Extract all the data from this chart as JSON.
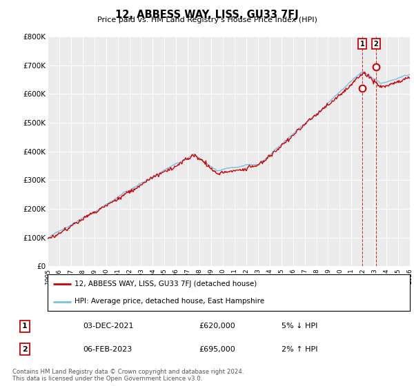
{
  "title": "12, ABBESS WAY, LISS, GU33 7FJ",
  "subtitle": "Price paid vs. HM Land Registry's House Price Index (HPI)",
  "ylim": [
    0,
    800000
  ],
  "xlim_start": 1995,
  "xlim_end": 2026,
  "hpi_color": "#7abde8",
  "price_color": "#cc0000",
  "sale1_x": 2021.917,
  "sale1_y": 620000,
  "sale2_x": 2023.083,
  "sale2_y": 695000,
  "legend_label1": "12, ABBESS WAY, LISS, GU33 7FJ (detached house)",
  "legend_label2": "HPI: Average price, detached house, East Hampshire",
  "table_row1": [
    "1",
    "03-DEC-2021",
    "£620,000",
    "5% ↓ HPI"
  ],
  "table_row2": [
    "2",
    "06-FEB-2023",
    "£695,000",
    "2% ↑ HPI"
  ],
  "footnote": "Contains HM Land Registry data © Crown copyright and database right 2024.\nThis data is licensed under the Open Government Licence v3.0.",
  "plot_bg_color": "#ebebeb",
  "fig_bg_color": "#ffffff"
}
